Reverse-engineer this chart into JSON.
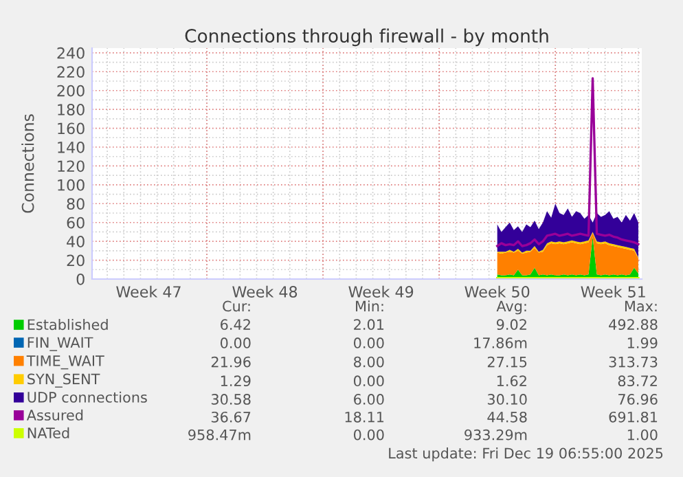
{
  "chart_data": {
    "type": "area",
    "stacked": true,
    "title": "Connections through firewall - by month",
    "ylabel": "Connections",
    "x": [
      "2025-12-11T12:00",
      "2025-12-11T18:00",
      "2025-12-12T00:00",
      "2025-12-12T06:00",
      "2025-12-12T12:00",
      "2025-12-12T18:00",
      "2025-12-13T00:00",
      "2025-12-13T06:00",
      "2025-12-13T12:00",
      "2025-12-13T18:00",
      "2025-12-14T00:00",
      "2025-12-14T06:00",
      "2025-12-14T12:00",
      "2025-12-14T18:00",
      "2025-12-15T00:00",
      "2025-12-15T06:00",
      "2025-12-15T12:00",
      "2025-12-15T18:00",
      "2025-12-16T00:00",
      "2025-12-16T06:00",
      "2025-12-16T12:00",
      "2025-12-16T18:00",
      "2025-12-17T00:00",
      "2025-12-17T06:00",
      "2025-12-17T12:00",
      "2025-12-17T18:00",
      "2025-12-18T00:00",
      "2025-12-18T06:00",
      "2025-12-18T12:00",
      "2025-12-18T18:00",
      "2025-12-19T00:00",
      "2025-12-19T06:00",
      "2025-12-19T12:00",
      "2025-12-19T18:00",
      "2025-12-20T00:00"
    ],
    "series": [
      {
        "name": "Established",
        "color": "#00cc00",
        "values": [
          5,
          4,
          4,
          5,
          4,
          10,
          4,
          4,
          5,
          12,
          4,
          5,
          4,
          5,
          4,
          4,
          5,
          4,
          5,
          4,
          5,
          4,
          5,
          45,
          5,
          4,
          5,
          4,
          5,
          4,
          5,
          4,
          5,
          12,
          6
        ]
      },
      {
        "name": "FIN_WAIT",
        "color": "#0066b3",
        "values": [
          null,
          null,
          null,
          null,
          null,
          null,
          null,
          null,
          null,
          null,
          null,
          null,
          null,
          null,
          null,
          null,
          null,
          null,
          null,
          null,
          null,
          null,
          null,
          null,
          null,
          null,
          null,
          null,
          null,
          null,
          null,
          null,
          null,
          null,
          null
        ]
      },
      {
        "name": "TIME_WAIT",
        "color": "#ff8000",
        "values": [
          23,
          23,
          24,
          24,
          24,
          20,
          23,
          24,
          24,
          21,
          24,
          24,
          32,
          33,
          33,
          34,
          32,
          34,
          34,
          34,
          32,
          34,
          34,
          4,
          33,
          33,
          33,
          32,
          30,
          30,
          28,
          28,
          26,
          18,
          16
        ]
      },
      {
        "name": "SYN_SENT",
        "color": "#ffcc00",
        "values": [
          1,
          2,
          1,
          2,
          1,
          2,
          1,
          2,
          1,
          2,
          1,
          2,
          2,
          2,
          2,
          2,
          2,
          2,
          2,
          2,
          2,
          2,
          2,
          1,
          2,
          2,
          2,
          2,
          2,
          2,
          2,
          2,
          2,
          2,
          1
        ]
      },
      {
        "name": "UDP connections",
        "color": "#330099",
        "values": [
          29,
          21,
          26,
          29,
          23,
          24,
          22,
          28,
          25,
          27,
          24,
          29,
          34,
          25,
          41,
          30,
          29,
          35,
          25,
          32,
          31,
          24,
          27,
          10,
          30,
          27,
          28,
          34,
          27,
          30,
          25,
          34,
          29,
          38,
          37
        ]
      },
      {
        "name": "Assured",
        "color": "#990099",
        "type": "line",
        "values": [
          35,
          38,
          36,
          37,
          36,
          40,
          35,
          36,
          38,
          42,
          37,
          40,
          46,
          47,
          48,
          46,
          47,
          48,
          46,
          47,
          48,
          47,
          46,
          213,
          48,
          47,
          46,
          47,
          45,
          44,
          42,
          41,
          40,
          39,
          37
        ]
      },
      {
        "name": "NATed",
        "color": "#ccff00",
        "type": "line",
        "values": [
          1,
          1,
          1,
          1,
          1,
          1,
          1,
          1,
          1,
          1,
          1,
          1,
          1,
          1,
          1,
          1,
          1,
          1,
          1,
          1,
          1,
          1,
          1,
          1,
          1,
          1,
          1,
          1,
          1,
          1,
          1,
          1,
          1,
          1,
          1
        ]
      }
    ],
    "xlim": [
      "2025-11-17T02:00",
      "2025-12-20T05:00"
    ],
    "xticks": [
      {
        "value": "2025-11-20T12:00",
        "label": "Week 47"
      },
      {
        "value": "2025-11-27T12:00",
        "label": "Week 48"
      },
      {
        "value": "2025-12-04T12:00",
        "label": "Week 49"
      },
      {
        "value": "2025-12-11T12:00",
        "label": "Week 50"
      },
      {
        "value": "2025-12-18T12:00",
        "label": "Week 51"
      }
    ],
    "ylim": [
      0,
      245
    ],
    "yticks": [
      0,
      20,
      40,
      60,
      80,
      100,
      120,
      140,
      160,
      180,
      200,
      220,
      240
    ],
    "grid": true,
    "legend": "bottom",
    "annotations": [
      "Cur:",
      "Min:",
      "Avg:",
      "Max:",
      "6.42",
      "2.01",
      "9.02",
      "492.88",
      "0.00",
      "0.00",
      "17.86m",
      "1.99",
      "21.96",
      "8.00",
      "27.15",
      "313.73",
      "1.29",
      "0.00",
      "1.62",
      "83.72",
      "30.58",
      "6.00",
      "30.10",
      "76.96",
      "36.67",
      "18.11",
      "44.58",
      "691.81",
      "958.47m",
      "0.00",
      "933.29m",
      "1.00",
      "Last update: Fri Dec 19 06:55:00 2025"
    ]
  }
}
